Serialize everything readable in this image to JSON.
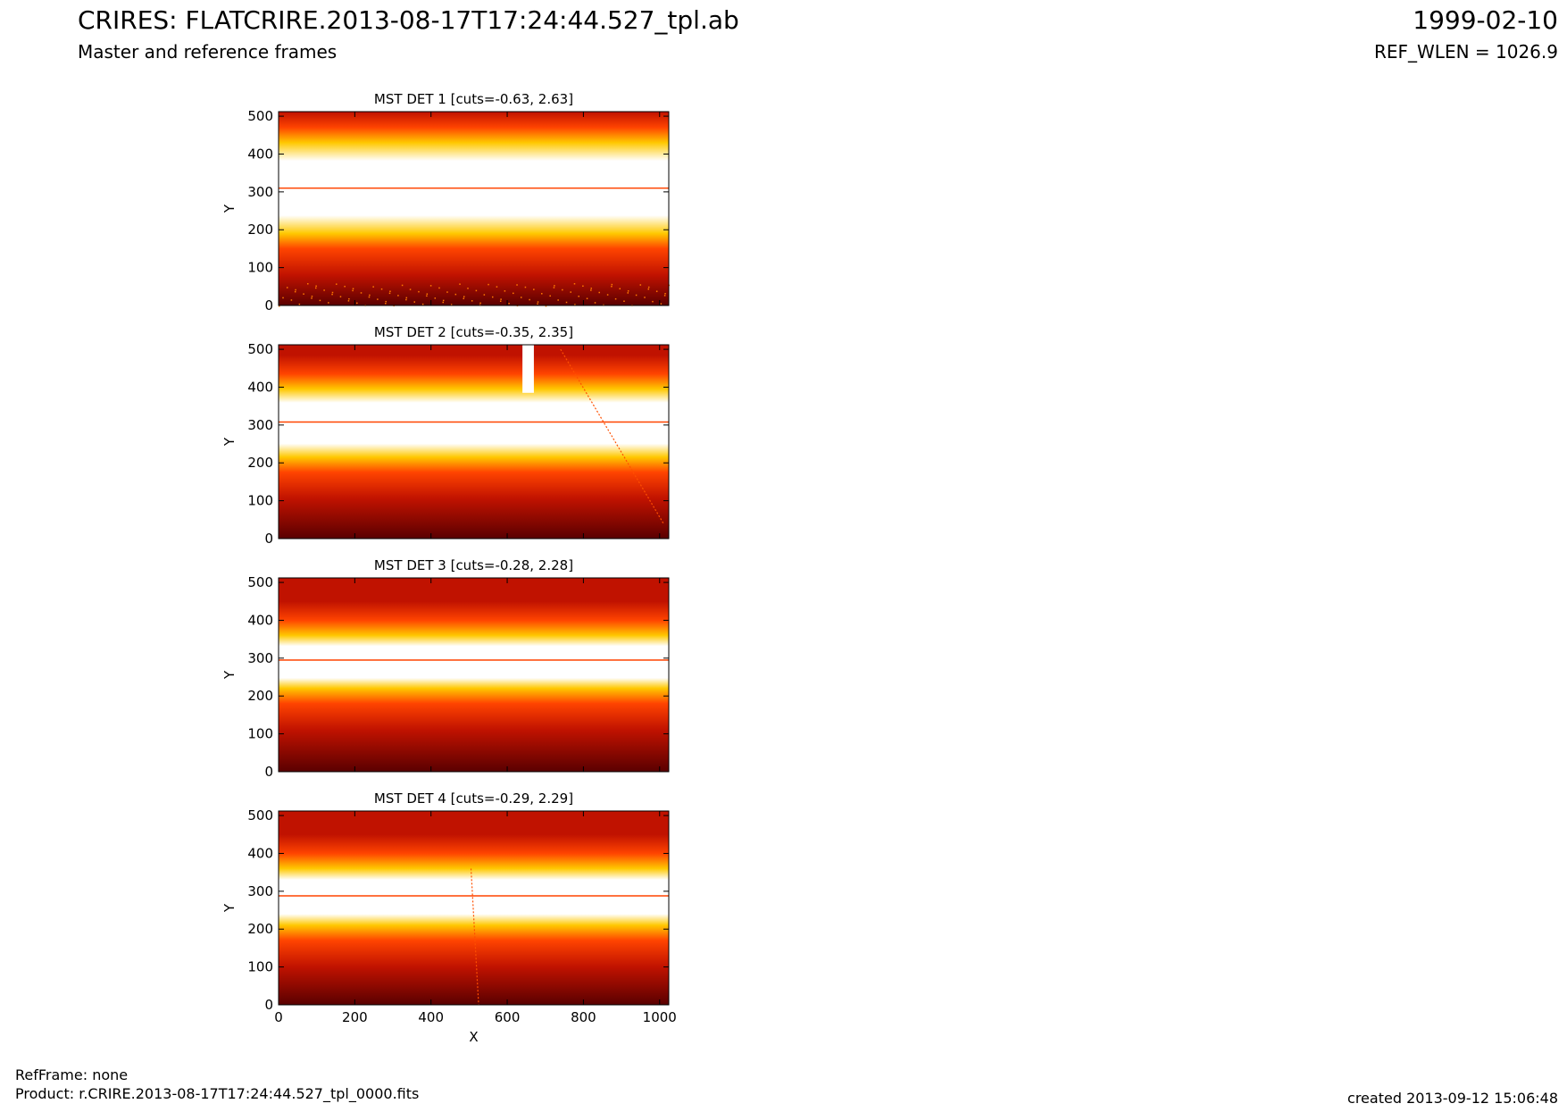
{
  "header": {
    "title_left": "CRIRES: FLAT",
    "subtitle_left": "Master and reference frames",
    "title_center": "CRIRE.2013-08-17T17:24:44.527_tpl.ab",
    "title_right": "1999-02-10",
    "subtitle_right": "REF_WLEN = 1026.9"
  },
  "footer": {
    "refframe": "RefFrame: none",
    "product": "Product: r.CRIRE.2013-08-17T17:24:44.527_tpl_0000.fits",
    "created": "created 2013-09-12 15:06:48"
  },
  "colormap": [
    "#5a0000",
    "#c01200",
    "#ff4400",
    "#ffc800",
    "#ffffbe",
    "#ffffff"
  ],
  "chart_data": [
    {
      "type": "heatmap",
      "title": "MST DET 1 [cuts=-0.63, 2.63]",
      "xlabel": "",
      "ylabel": "Y",
      "xlim": [
        0,
        1024
      ],
      "ylim": [
        0,
        512
      ],
      "xticks": [],
      "yticks": [
        0,
        100,
        200,
        300,
        400,
        500
      ],
      "band": {
        "center_x0": 310,
        "center_x1024": 310,
        "halfwidth_x0": 25,
        "halfwidth_x1024": 120
      },
      "line_y": 310,
      "cosmetics": [
        {
          "kind": "dots",
          "y_range": [
            0,
            60
          ]
        }
      ]
    },
    {
      "type": "heatmap",
      "title": "MST DET 2 [cuts=-0.35, 2.35]",
      "xlabel": "",
      "ylabel": "Y",
      "xlim": [
        0,
        1024
      ],
      "ylim": [
        0,
        512
      ],
      "xticks": [],
      "yticks": [
        0,
        100,
        200,
        300,
        400,
        500
      ],
      "band": {
        "center_x0": 305,
        "center_x1024": 305,
        "halfwidth_x0": 75,
        "halfwidth_x1024": 90
      },
      "line_y": 308,
      "cosmetics": [
        {
          "kind": "vstrip",
          "x_range": [
            640,
            670
          ],
          "y_range": [
            385,
            512
          ]
        },
        {
          "kind": "diag",
          "x0": 740,
          "y0": 500,
          "x1": 1010,
          "y1": 40
        }
      ]
    },
    {
      "type": "heatmap",
      "title": "MST DET 3 [cuts=-0.28, 2.28]",
      "xlabel": "",
      "ylabel": "Y",
      "xlim": [
        0,
        1024
      ],
      "ylim": [
        0,
        512
      ],
      "xticks": [],
      "yticks": [
        0,
        100,
        200,
        300,
        400,
        500
      ],
      "band": {
        "center_x0": 290,
        "center_x1024": 290,
        "halfwidth_x0": 70,
        "halfwidth_x1024": 70
      },
      "line_y": 295,
      "cosmetics": []
    },
    {
      "type": "heatmap",
      "title": "MST DET 4 [cuts=-0.29, 2.29]",
      "xlabel": "X",
      "ylabel": "Y",
      "xlim": [
        0,
        1024
      ],
      "ylim": [
        0,
        512
      ],
      "xticks": [
        0,
        200,
        400,
        600,
        800,
        1000
      ],
      "yticks": [
        0,
        100,
        200,
        300,
        400,
        500
      ],
      "band": {
        "center_x0": 285,
        "center_x1024": 280,
        "halfwidth_x0": 75,
        "halfwidth_x1024": 70
      },
      "line_y": 288,
      "cosmetics": [
        {
          "kind": "diag",
          "x0": 505,
          "y0": 360,
          "x1": 525,
          "y1": 0
        }
      ]
    }
  ]
}
